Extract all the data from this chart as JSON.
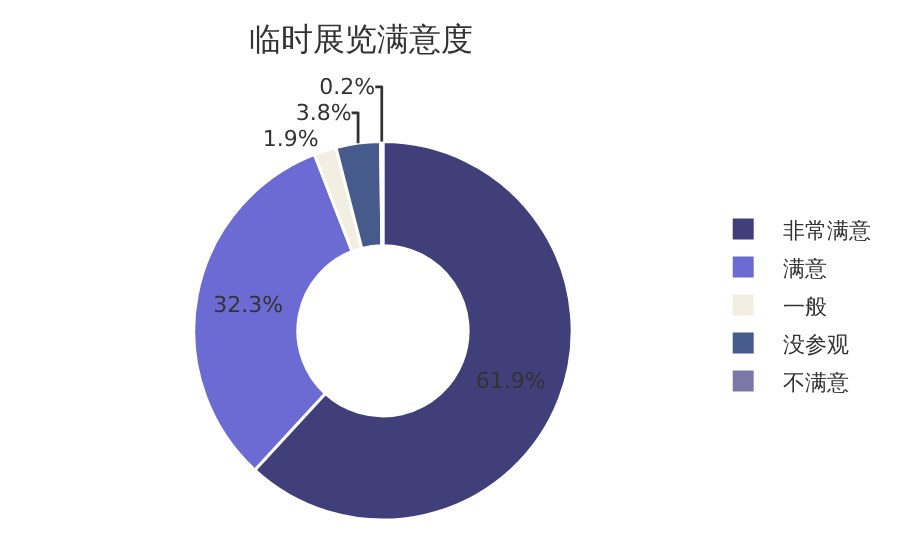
{
  "chart_data": {
    "type": "donut",
    "title": "临时展览满意度",
    "categories": [
      "非常满意",
      "满意",
      "一般",
      "没参观",
      "不满意"
    ],
    "values": [
      61.9,
      32.3,
      1.9,
      3.8,
      0.2
    ],
    "value_labels": [
      "61.9%",
      "32.3%",
      "1.9%",
      "3.8%",
      "0.2%"
    ],
    "colors": [
      "#413f7a",
      "#6c6bd4",
      "#f3eee2",
      "#465a8c",
      "#7b78a8"
    ],
    "legend": "right"
  }
}
